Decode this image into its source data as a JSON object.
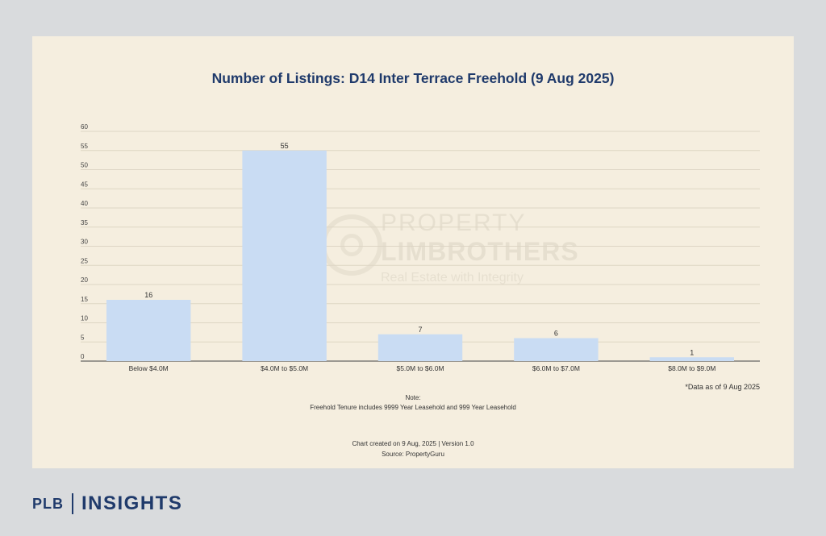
{
  "chart_data": {
    "type": "bar",
    "title": "Number of Listings: D14 Inter Terrace Freehold (9 Aug 2025)",
    "categories": [
      "Below $4.0M",
      "$4.0M to $5.0M",
      "$5.0M to $6.0M",
      "$6.0M to $7.0M",
      "$8.0M to $9.0M"
    ],
    "values": [
      16,
      55,
      7,
      6,
      1
    ],
    "data_labels": [
      "16",
      "55",
      "7",
      "6",
      "1"
    ],
    "yticks": [
      0,
      5,
      10,
      15,
      20,
      25,
      30,
      35,
      40,
      45,
      50,
      55,
      60
    ],
    "ylim": [
      0,
      60
    ],
    "xlabel": "",
    "ylabel": "",
    "grid": true,
    "legend": "none",
    "bar_color": "#c9dcf3"
  },
  "watermark": {
    "line1": "PROPERTY",
    "line2": "LIMBROTHERS",
    "line3": "Real Estate with Integrity"
  },
  "notes": {
    "date_note": "*Data as of 9 Aug 2025",
    "note_heading": "Note:",
    "note_text": "Freehold Tenure includes 9999 Year Leasehold and 999 Year Leasehold",
    "created": "Chart created on 9 Aug, 2025 | Version 1.0",
    "source": "Source: PropertyGuru"
  },
  "brand": {
    "plb": "PLB",
    "insights": "INSIGHTS",
    "color": "#1f3a6b"
  }
}
